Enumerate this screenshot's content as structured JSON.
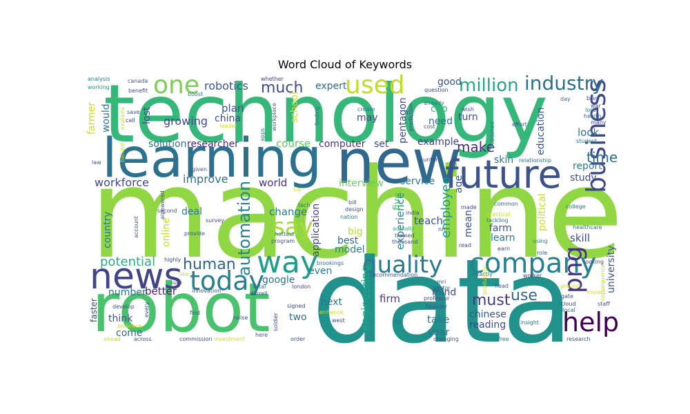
{
  "chart_data": {
    "type": "wordcloud",
    "title": "Word Cloud of Keywords",
    "palette": [
      "#440154",
      "#443a83",
      "#31688e",
      "#21918c",
      "#35b779",
      "#90d743",
      "#fde725"
    ],
    "words": [
      {
        "text": "machine",
        "weight": 1.0,
        "color": "#90d743"
      },
      {
        "text": "data",
        "weight": 0.95,
        "color": "#21918c"
      },
      {
        "text": "technology",
        "weight": 0.82,
        "color": "#35b779"
      },
      {
        "text": "new",
        "weight": 0.7,
        "color": "#31688e"
      },
      {
        "text": "learning",
        "weight": 0.62,
        "color": "#2c728e"
      },
      {
        "text": "robot",
        "weight": 0.6,
        "color": "#4ac16d"
      },
      {
        "text": "future",
        "weight": 0.4,
        "color": "#3b528b"
      },
      {
        "text": "news",
        "weight": 0.36,
        "color": "#414487"
      },
      {
        "text": "company",
        "weight": 0.33,
        "color": "#26828e"
      },
      {
        "text": "way",
        "weight": 0.32,
        "color": "#1f9e89"
      },
      {
        "text": "quality",
        "weight": 0.3,
        "color": "#2a788e"
      },
      {
        "text": "business",
        "weight": 0.28,
        "color": "#3e4989"
      },
      {
        "text": "today",
        "weight": 0.27,
        "color": "#27808e"
      },
      {
        "text": "help",
        "weight": 0.27,
        "color": "#440154"
      },
      {
        "text": "png",
        "weight": 0.27,
        "color": "#46327e"
      },
      {
        "text": "one",
        "weight": 0.24,
        "color": "#7ad151"
      },
      {
        "text": "used",
        "weight": 0.24,
        "color": "#bddf26"
      },
      {
        "text": "say",
        "weight": 0.23,
        "color": "#a5db36"
      },
      {
        "text": "industry",
        "weight": 0.2,
        "color": "#2d708e"
      },
      {
        "text": "million",
        "weight": 0.18,
        "color": "#22a884"
      },
      {
        "text": "automation",
        "weight": 0.18,
        "color": "#25848e"
      },
      {
        "text": "human",
        "weight": 0.16,
        "color": "#33638d"
      },
      {
        "text": "much",
        "weight": 0.16,
        "color": "#3c4f8a"
      },
      {
        "text": "use",
        "weight": 0.16,
        "color": "#31688e"
      },
      {
        "text": "must",
        "weight": 0.16,
        "color": "#443983"
      },
      {
        "text": "make",
        "weight": 0.15,
        "color": "#472c7a"
      },
      {
        "text": "time",
        "weight": 0.15,
        "color": "#2c728e"
      },
      {
        "text": "potential",
        "weight": 0.13,
        "color": "#27ad81"
      },
      {
        "text": "workforce",
        "weight": 0.12,
        "color": "#3e4989"
      },
      {
        "text": "robotics",
        "weight": 0.12,
        "color": "#3b528b"
      },
      {
        "text": "growing",
        "weight": 0.12,
        "color": "#3e4c8a"
      },
      {
        "text": "employee",
        "weight": 0.12,
        "color": "#1f988b"
      },
      {
        "text": "improve",
        "weight": 0.12,
        "color": "#2d708e"
      },
      {
        "text": "course",
        "weight": 0.11,
        "color": "#5ec962"
      },
      {
        "text": "change",
        "weight": 0.11,
        "color": "#2a788e"
      },
      {
        "text": "plan",
        "weight": 0.11,
        "color": "#3b528b"
      },
      {
        "text": "world",
        "weight": 0.11,
        "color": "#46327e"
      },
      {
        "text": "skill",
        "weight": 0.11,
        "color": "#3e4a89"
      },
      {
        "text": "teach",
        "weight": 0.11,
        "color": "#3b528b"
      },
      {
        "text": "look",
        "weight": 0.11,
        "color": "#2c728e"
      },
      {
        "text": "better",
        "weight": 0.11,
        "color": "#481f70"
      },
      {
        "text": "experience",
        "weight": 0.11,
        "color": "#24878e"
      },
      {
        "text": "engineering",
        "weight": 0.11,
        "color": "#20a486"
      },
      {
        "text": "firm",
        "weight": 0.11,
        "color": "#443983"
      },
      {
        "text": "take",
        "weight": 0.11,
        "color": "#2a788e"
      },
      {
        "text": "google",
        "weight": 0.1,
        "color": "#2c728e"
      },
      {
        "text": "mean",
        "weight": 0.1,
        "color": "#3b528b"
      },
      {
        "text": "expert",
        "weight": 0.1,
        "color": "#31688e"
      },
      {
        "text": "computer",
        "weight": 0.1,
        "color": "#46327e"
      },
      {
        "text": "good",
        "weight": 0.1,
        "color": "#3b528b"
      },
      {
        "text": "researcher",
        "weight": 0.1,
        "color": "#472a7a"
      },
      {
        "text": "solution",
        "weight": 0.1,
        "color": "#2c728e"
      },
      {
        "text": "university",
        "weight": 0.1,
        "color": "#3b528b"
      },
      {
        "text": "political",
        "weight": 0.1,
        "color": "#c8e020"
      },
      {
        "text": "china",
        "weight": 0.1,
        "color": "#3e4989"
      },
      {
        "text": "year",
        "weight": 0.1,
        "color": "#2d708e"
      },
      {
        "text": "think",
        "weight": 0.1,
        "color": "#3b528b"
      },
      {
        "text": "mind",
        "weight": 0.1,
        "color": "#3e4c8a"
      },
      {
        "text": "next",
        "weight": 0.1,
        "color": "#2c728e"
      },
      {
        "text": "two",
        "weight": 0.1,
        "color": "#2d708e"
      },
      {
        "text": "chinese",
        "weight": 0.09,
        "color": "#3b528b"
      },
      {
        "text": "reading",
        "weight": 0.09,
        "color": "#3e4989"
      },
      {
        "text": "education",
        "weight": 0.09,
        "color": "#3b528b"
      },
      {
        "text": "service",
        "weight": 0.09,
        "color": "#2a788e"
      },
      {
        "text": "report",
        "weight": 0.09,
        "color": "#2a788e"
      },
      {
        "text": "example",
        "weight": 0.09,
        "color": "#414487"
      },
      {
        "text": "online",
        "weight": 0.09,
        "color": "#c2df23"
      },
      {
        "text": "country",
        "weight": 0.09,
        "color": "#2a788e"
      },
      {
        "text": "interview",
        "weight": 0.09,
        "color": "#6ccd5a"
      },
      {
        "text": "application",
        "weight": 0.09,
        "color": "#414487"
      },
      {
        "text": "best",
        "weight": 0.09,
        "color": "#31688e"
      },
      {
        "text": "model",
        "weight": 0.09,
        "color": "#26828e"
      },
      {
        "text": "five",
        "weight": 0.09,
        "color": "#4ac16d"
      },
      {
        "text": "pentagon",
        "weight": 0.09,
        "color": "#3e4989"
      },
      {
        "text": "school",
        "weight": 0.09,
        "color": "#c8e020"
      },
      {
        "text": "farm",
        "weight": 0.09,
        "color": "#3b528b"
      },
      {
        "text": "learn",
        "weight": 0.09,
        "color": "#2a788e"
      },
      {
        "text": "come",
        "weight": 0.09,
        "color": "#33638d"
      },
      {
        "text": "number",
        "weight": 0.09,
        "color": "#2c728e"
      },
      {
        "text": "deal",
        "weight": 0.09,
        "color": "#2a788e"
      },
      {
        "text": "lost",
        "weight": 0.09,
        "color": "#3e4989"
      },
      {
        "text": "would",
        "weight": 0.09,
        "color": "#2c728e"
      },
      {
        "text": "farmer",
        "weight": 0.09,
        "color": "#c2df23"
      },
      {
        "text": "turn",
        "weight": 0.09,
        "color": "#3e4989"
      },
      {
        "text": "need",
        "weight": 0.09,
        "color": "#2c728e"
      },
      {
        "text": "ceo",
        "weight": 0.09,
        "color": "#35b779"
      },
      {
        "text": "may",
        "weight": 0.09,
        "color": "#3e4989"
      },
      {
        "text": "even",
        "weight": 0.09,
        "color": "#2a788e"
      },
      {
        "text": "set",
        "weight": 0.09,
        "color": "#3e4989"
      },
      {
        "text": "age",
        "weight": 0.09,
        "color": "#3b528b"
      },
      {
        "text": "study",
        "weight": 0.09,
        "color": "#3e4989"
      },
      {
        "text": "skin",
        "weight": 0.09,
        "color": "#2c728e"
      },
      {
        "text": "big",
        "weight": 0.09,
        "color": "#b5de2b"
      },
      {
        "text": "analysis",
        "weight": 0.05,
        "color": "#2a788e"
      },
      {
        "text": "working",
        "weight": 0.05,
        "color": "#1f988b"
      },
      {
        "text": "canada",
        "weight": 0.05,
        "color": "#3b528b"
      },
      {
        "text": "benefit",
        "weight": 0.05,
        "color": "#3e4989"
      },
      {
        "text": "save",
        "weight": 0.05,
        "color": "#3b528b"
      },
      {
        "text": "call",
        "weight": 0.05,
        "color": "#414487"
      },
      {
        "text": "explains",
        "weight": 0.05,
        "color": "#c8e020"
      },
      {
        "text": "whether",
        "weight": 0.05,
        "color": "#443983"
      },
      {
        "text": "boost",
        "weight": 0.05,
        "color": "#2c728e"
      },
      {
        "text": "survey",
        "weight": 0.05,
        "color": "#3e4989"
      },
      {
        "text": "leader",
        "weight": 0.05,
        "color": "#c8e020"
      },
      {
        "text": "workplace",
        "weight": 0.05,
        "color": "#3b528b"
      },
      {
        "text": "apps",
        "weight": 0.05,
        "color": "#31688e"
      },
      {
        "text": "finding",
        "weight": 0.05,
        "color": "#2c728e"
      },
      {
        "text": "create",
        "weight": 0.05,
        "color": "#2a788e"
      },
      {
        "text": "prediction",
        "weight": 0.05,
        "color": "#3e4989"
      },
      {
        "text": "question",
        "weight": 0.05,
        "color": "#3e4989"
      },
      {
        "text": "already",
        "weight": 0.05,
        "color": "#2c728e"
      },
      {
        "text": "cost",
        "weight": 0.05,
        "color": "#3b528b"
      },
      {
        "text": "wish",
        "weight": 0.05,
        "color": "#3e4989"
      },
      {
        "text": "published",
        "weight": 0.05,
        "color": "#2a788e"
      },
      {
        "text": "effort",
        "weight": 0.05,
        "color": "#3b528b"
      },
      {
        "text": "day",
        "weight": 0.05,
        "color": "#2c728e"
      },
      {
        "text": "bias",
        "weight": 0.05,
        "color": "#3e4989"
      },
      {
        "text": "war",
        "weight": 0.05,
        "color": "#3e4989"
      },
      {
        "text": "lose",
        "weight": 0.05,
        "color": "#2c728e"
      },
      {
        "text": "health",
        "weight": 0.05,
        "color": "#31688e"
      },
      {
        "text": "many",
        "weight": 0.05,
        "color": "#3e4989"
      },
      {
        "text": "student",
        "weight": 0.05,
        "color": "#2a788e"
      },
      {
        "text": "law",
        "weight": 0.05,
        "color": "#3b528b"
      },
      {
        "text": "behind",
        "weight": 0.05,
        "color": "#c8e020"
      },
      {
        "text": "given",
        "weight": 0.05,
        "color": "#3b528b"
      },
      {
        "text": "hunter",
        "weight": 0.05,
        "color": "#3e4989"
      },
      {
        "text": "relationship",
        "weight": 0.05,
        "color": "#2c728e"
      },
      {
        "text": "account",
        "weight": 0.05,
        "color": "#3b528b"
      },
      {
        "text": "aipowered",
        "weight": 0.05,
        "color": "#3e4989"
      },
      {
        "text": "six",
        "weight": 0.05,
        "color": "#c8e020"
      },
      {
        "text": "tech",
        "weight": 0.05,
        "color": "#2c728e"
      },
      {
        "text": "bill",
        "weight": 0.05,
        "color": "#3e4989"
      },
      {
        "text": "design",
        "weight": 0.05,
        "color": "#3b528b"
      },
      {
        "text": "nation",
        "weight": 0.05,
        "color": "#2a788e"
      },
      {
        "text": "india",
        "weight": 0.05,
        "color": "#3e4989"
      },
      {
        "text": "practical",
        "weight": 0.05,
        "color": "#c8e020"
      },
      {
        "text": "tackling",
        "weight": 0.05,
        "color": "#2a788e"
      },
      {
        "text": "common",
        "weight": 0.05,
        "color": "#31688e"
      },
      {
        "text": "made",
        "weight": 0.05,
        "color": "#3e4989"
      },
      {
        "text": "college",
        "weight": 0.05,
        "color": "#2c728e"
      },
      {
        "text": "second",
        "weight": 0.05,
        "color": "#3b528b"
      },
      {
        "text": "provide",
        "weight": 0.05,
        "color": "#3b528b"
      },
      {
        "text": "hottest",
        "weight": 0.05,
        "color": "#2c728e"
      },
      {
        "text": "actually",
        "weight": 0.05,
        "color": "#35b779"
      },
      {
        "text": "trained",
        "weight": 0.05,
        "color": "#3e4989"
      },
      {
        "text": "thousand",
        "weight": 0.05,
        "color": "#3e4989"
      },
      {
        "text": "program",
        "weight": 0.05,
        "color": "#3b528b"
      },
      {
        "text": "nh",
        "weight": 0.05,
        "color": "#3b528b"
      },
      {
        "text": "read",
        "weight": 0.05,
        "color": "#3e4989"
      },
      {
        "text": "using",
        "weight": 0.05,
        "color": "#2a788e"
      },
      {
        "text": "healthcare",
        "weight": 0.05,
        "color": "#2c728e"
      },
      {
        "text": "role",
        "weight": 0.05,
        "color": "#3b528b"
      },
      {
        "text": "earn",
        "weight": 0.05,
        "color": "#3e4989"
      },
      {
        "text": "highly",
        "weight": 0.05,
        "color": "#3e4989"
      },
      {
        "text": "brookings",
        "weight": 0.05,
        "color": "#2c728e"
      },
      {
        "text": "looking",
        "weight": 0.05,
        "color": "#3e4989"
      },
      {
        "text": "like",
        "weight": 0.05,
        "color": "#c8e020"
      },
      {
        "text": "sum",
        "weight": 0.05,
        "color": "#3e4989"
      },
      {
        "text": "total",
        "weight": 0.05,
        "color": "#31688e"
      },
      {
        "text": "darrell",
        "weight": 0.05,
        "color": "#3b528b"
      },
      {
        "text": "london",
        "weight": 0.05,
        "color": "#3e4989"
      },
      {
        "text": "recommendation",
        "weight": 0.05,
        "color": "#3b528b"
      },
      {
        "text": "exactly",
        "weight": 0.05,
        "color": "#2c728e"
      },
      {
        "text": "worker",
        "weight": 0.05,
        "color": "#3e4989"
      },
      {
        "text": "head",
        "weight": 0.05,
        "color": "#3b528b"
      },
      {
        "text": "ground",
        "weight": 0.05,
        "color": "#c8e020"
      },
      {
        "text": "gate",
        "weight": 0.05,
        "color": "#3b528b"
      },
      {
        "text": "impact",
        "weight": 0.05,
        "color": "#c8e020"
      },
      {
        "text": "cloud",
        "weight": 0.05,
        "color": "#3e4989"
      },
      {
        "text": "local",
        "weight": 0.05,
        "color": "#31688e"
      },
      {
        "text": "staff",
        "weight": 0.05,
        "color": "#3b528b"
      },
      {
        "text": "consequence",
        "weight": 0.05,
        "color": "#c8e020"
      },
      {
        "text": "innovation",
        "weight": 0.05,
        "color": "#3e4989"
      },
      {
        "text": "production",
        "weight": 0.05,
        "color": "#c8e020"
      },
      {
        "text": "professor",
        "weight": 0.05,
        "color": "#3e4989"
      },
      {
        "text": "sector",
        "weight": 0.05,
        "color": "#3b528b"
      },
      {
        "text": "mri",
        "weight": 0.05,
        "color": "#3b528b"
      },
      {
        "text": "signed",
        "weight": 0.05,
        "color": "#3e4989"
      },
      {
        "text": "founder",
        "weight": 0.05,
        "color": "#3b528b"
      },
      {
        "text": "enhance",
        "weight": 0.05,
        "color": "#c8e020"
      },
      {
        "text": "west",
        "weight": 0.05,
        "color": "#3e4989"
      },
      {
        "text": "insight",
        "weight": 0.05,
        "color": "#2c728e"
      },
      {
        "text": "life",
        "weight": 0.05,
        "color": "#2a788e"
      },
      {
        "text": "develop",
        "weight": 0.05,
        "color": "#3b528b"
      },
      {
        "text": "faster",
        "weight": 0.06,
        "color": "#3e4989"
      },
      {
        "text": "embrace",
        "weight": 0.05,
        "color": "#c8e020"
      },
      {
        "text": "every",
        "weight": 0.05,
        "color": "#3e4989"
      },
      {
        "text": "find",
        "weight": 0.05,
        "color": "#3b528b"
      },
      {
        "text": "noise",
        "weight": 0.05,
        "color": "#3e4989"
      },
      {
        "text": "soldier",
        "weight": 0.05,
        "color": "#3b528b"
      },
      {
        "text": "ahead",
        "weight": 0.05,
        "color": "#c8e020"
      },
      {
        "text": "across",
        "weight": 0.05,
        "color": "#3b528b"
      },
      {
        "text": "commission",
        "weight": 0.05,
        "color": "#3e4989"
      },
      {
        "text": "investment",
        "weight": 0.05,
        "color": "#c8e020"
      },
      {
        "text": "here",
        "weight": 0.05,
        "color": "#3b528b"
      },
      {
        "text": "order",
        "weight": 0.05,
        "color": "#3e4989"
      },
      {
        "text": "changing",
        "weight": 0.05,
        "color": "#3b528b"
      },
      {
        "text": "free",
        "weight": 0.05,
        "color": "#2c728e"
      },
      {
        "text": "research",
        "weight": 0.05,
        "color": "#3b528b"
      }
    ]
  }
}
